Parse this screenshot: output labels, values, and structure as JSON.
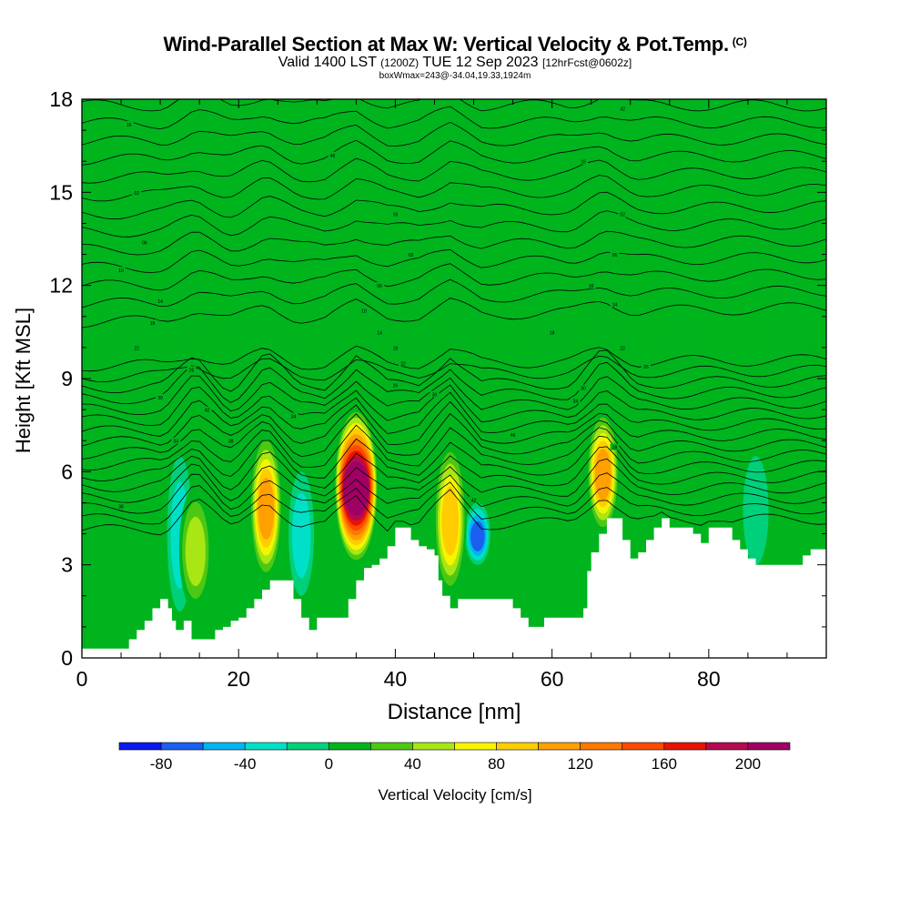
{
  "title": "Wind-Parallel Section at Max W: Vertical Velocity & Pot.Temp.",
  "title_mark": "(C)",
  "subtitle_main": "Valid 1400 LST",
  "subtitle_z": "(1200Z)",
  "subtitle_date": "TUE 12 Sep 2023",
  "subtitle_fcst": "[12hrFcst@0602z]",
  "subtitle2": "boxWmax=243@-34.04,19.33,1924m",
  "chart_data": {
    "type": "heatmap",
    "xlabel": "Distance [nm]",
    "ylabel": "Height [Kft MSL]",
    "xlim": [
      0,
      95
    ],
    "ylim": [
      0,
      18
    ],
    "x_ticks": [
      0,
      20,
      40,
      60,
      80
    ],
    "y_ticks": [
      0,
      3,
      6,
      9,
      12,
      15,
      18
    ],
    "colorbar": {
      "label": "Vertical Velocity [cm/s]",
      "levels": [
        -100,
        -80,
        -60,
        -40,
        -20,
        0,
        20,
        40,
        60,
        80,
        100,
        120,
        140,
        160,
        180,
        200,
        220
      ],
      "tick_labels": [
        "-80",
        "-40",
        "0",
        "40",
        "80",
        "120",
        "160",
        "200"
      ],
      "tick_values": [
        -80,
        -40,
        0,
        40,
        80,
        120,
        160,
        200
      ],
      "colors": [
        "#0a1aee",
        "#1a5ff0",
        "#00b4f0",
        "#00e0c8",
        "#00d07a",
        "#00b41e",
        "#4cc814",
        "#a8e614",
        "#f5f500",
        "#ffcc00",
        "#ffa000",
        "#ff7800",
        "#ff4a00",
        "#e81400",
        "#b40a50",
        "#a00064"
      ]
    },
    "updrafts": [
      {
        "x": 14.5,
        "ymin": 1.5,
        "ymax": 5.5,
        "peak": 60
      },
      {
        "x": 23.5,
        "ymin": 2.5,
        "ymax": 7.3,
        "peak": 120
      },
      {
        "x": 35.0,
        "ymin": 3.0,
        "ymax": 8.1,
        "peak": 210
      },
      {
        "x": 47.0,
        "ymin": 2.0,
        "ymax": 7.0,
        "peak": 100
      },
      {
        "x": 66.5,
        "ymin": 4.0,
        "ymax": 8.0,
        "peak": 110
      }
    ],
    "downdrafts": [
      {
        "x": 50.5,
        "ymin": 3.0,
        "ymax": 5.0,
        "peak": -80
      },
      {
        "x": 12.5,
        "ymin": 1.5,
        "ymax": 6.5,
        "peak": -40
      },
      {
        "x": 28.0,
        "ymin": 2.0,
        "ymax": 6.0,
        "peak": -30
      },
      {
        "x": 86.0,
        "ymin": 3.0,
        "ymax": 6.5,
        "peak": -25
      }
    ],
    "terrain": [
      [
        0,
        0.3
      ],
      [
        5.5,
        0.3
      ],
      [
        6,
        0.6
      ],
      [
        7,
        0.9
      ],
      [
        8,
        1.2
      ],
      [
        9,
        1.6
      ],
      [
        10,
        1.9
      ],
      [
        11,
        1.6
      ],
      [
        11.5,
        1.2
      ],
      [
        12,
        0.9
      ],
      [
        13,
        1.2
      ],
      [
        14,
        0.6
      ],
      [
        15,
        0.6
      ],
      [
        17,
        0.9
      ],
      [
        18,
        1.0
      ],
      [
        19,
        1.2
      ],
      [
        20,
        1.3
      ],
      [
        21,
        1.6
      ],
      [
        22,
        1.9
      ],
      [
        23,
        2.2
      ],
      [
        24,
        2.5
      ],
      [
        26,
        2.5
      ],
      [
        27,
        1.9
      ],
      [
        28,
        1.3
      ],
      [
        29,
        0.9
      ],
      [
        30,
        1.3
      ],
      [
        33,
        1.3
      ],
      [
        34,
        1.9
      ],
      [
        35,
        2.5
      ],
      [
        36,
        2.9
      ],
      [
        37,
        3.0
      ],
      [
        38,
        3.2
      ],
      [
        39,
        3.6
      ],
      [
        40,
        4.2
      ],
      [
        41,
        4.2
      ],
      [
        42,
        3.8
      ],
      [
        43,
        3.6
      ],
      [
        44,
        3.5
      ],
      [
        45,
        3.3
      ],
      [
        45.5,
        2.5
      ],
      [
        46,
        2.0
      ],
      [
        47,
        1.6
      ],
      [
        48,
        1.9
      ],
      [
        49,
        1.9
      ],
      [
        54,
        1.9
      ],
      [
        55,
        1.6
      ],
      [
        56,
        1.3
      ],
      [
        57,
        1.0
      ],
      [
        58,
        1.0
      ],
      [
        59,
        1.3
      ],
      [
        63,
        1.3
      ],
      [
        64,
        1.6
      ],
      [
        64.5,
        2.8
      ],
      [
        65,
        3.4
      ],
      [
        66,
        4.0
      ],
      [
        67,
        4.5
      ],
      [
        68,
        4.5
      ],
      [
        69,
        3.8
      ],
      [
        70,
        3.2
      ],
      [
        71,
        3.4
      ],
      [
        72,
        3.8
      ],
      [
        73,
        4.2
      ],
      [
        74,
        4.5
      ],
      [
        75,
        4.2
      ],
      [
        78,
        4.0
      ],
      [
        79,
        3.7
      ],
      [
        80,
        4.2
      ],
      [
        82,
        4.2
      ],
      [
        83,
        3.8
      ],
      [
        84,
        3.5
      ],
      [
        85,
        3.2
      ],
      [
        86,
        3.0
      ],
      [
        91,
        3.0
      ],
      [
        92,
        3.3
      ],
      [
        93,
        3.5
      ],
      [
        95,
        3.6
      ]
    ],
    "isentropes": {
      "count": 29,
      "base_height_west": 1.5,
      "base_height_east": 2.6,
      "top_height": 17.8,
      "labels": [
        "16",
        "02",
        "06",
        "10",
        "14",
        "18",
        "22",
        "26",
        "30",
        "34",
        "38",
        "42",
        "46"
      ]
    }
  }
}
